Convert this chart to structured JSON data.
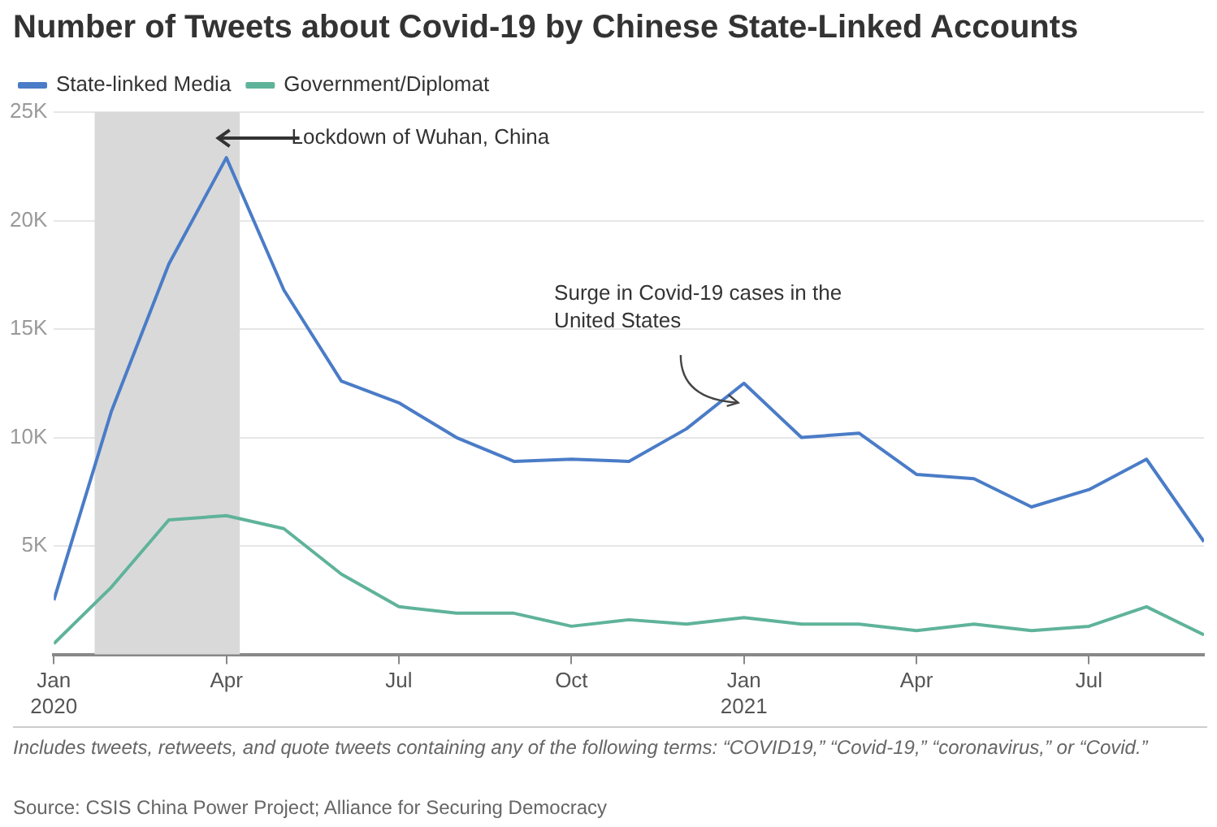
{
  "chart_data": {
    "type": "line",
    "title": "Number of Tweets about Covid-19 by Chinese State-Linked Accounts",
    "x": [
      "2020-01",
      "2020-02",
      "2020-03",
      "2020-04",
      "2020-05",
      "2020-06",
      "2020-07",
      "2020-08",
      "2020-09",
      "2020-10",
      "2020-11",
      "2020-12",
      "2021-01",
      "2021-02",
      "2021-03",
      "2021-04",
      "2021-05",
      "2021-06",
      "2021-07",
      "2021-08",
      "2021-09"
    ],
    "series": [
      {
        "name": "State-linked Media",
        "color": "#4a7cc7",
        "values": [
          2500,
          11200,
          18000,
          22900,
          16800,
          12600,
          11600,
          10000,
          8900,
          9000,
          8900,
          10400,
          12500,
          10000,
          10200,
          8300,
          8100,
          6800,
          7600,
          9000,
          5200
        ]
      },
      {
        "name": "Government/Diplomat",
        "color": "#5fb39a",
        "values": [
          500,
          3100,
          6200,
          6400,
          5800,
          3700,
          2200,
          1900,
          1900,
          1300,
          1600,
          1400,
          1700,
          1400,
          1400,
          1100,
          1400,
          1100,
          1300,
          2200,
          900
        ]
      }
    ],
    "xlim": [
      "2020-01",
      "2021-09"
    ],
    "xticks": [
      {
        "value": "2020-01",
        "label": "Jan\n2020"
      },
      {
        "value": "2020-04",
        "label": "Apr"
      },
      {
        "value": "2020-07",
        "label": "Jul"
      },
      {
        "value": "2020-10",
        "label": "Oct"
      },
      {
        "value": "2021-01",
        "label": "Jan\n2021"
      },
      {
        "value": "2021-04",
        "label": "Apr"
      },
      {
        "value": "2021-07",
        "label": "Jul"
      }
    ],
    "ylim": [
      0,
      25000
    ],
    "yticks": [
      {
        "value": 5000,
        "label": "5K"
      },
      {
        "value": 10000,
        "label": "10K"
      },
      {
        "value": 15000,
        "label": "15K"
      },
      {
        "value": 20000,
        "label": "20K"
      },
      {
        "value": 25000,
        "label": "25K"
      }
    ],
    "bands": [
      {
        "axis": "x",
        "from": "2020-01-23",
        "to": "2020-04-08",
        "color": "#d9d9d9"
      }
    ],
    "annotations": [
      "Lockdown of Wuhan, China",
      "Surge in Covid-19 cases in the United States",
      "Includes tweets, retweets, and quote tweets containing any of the following terms: “COVID19,” “Covid-19,” “coronavirus,” or “Covid.”",
      "Source: CSIS China Power Project; Alliance for Securing Democracy"
    ],
    "grid": "y",
    "legend": "top left",
    "marker": "none",
    "line_style": "solid"
  }
}
